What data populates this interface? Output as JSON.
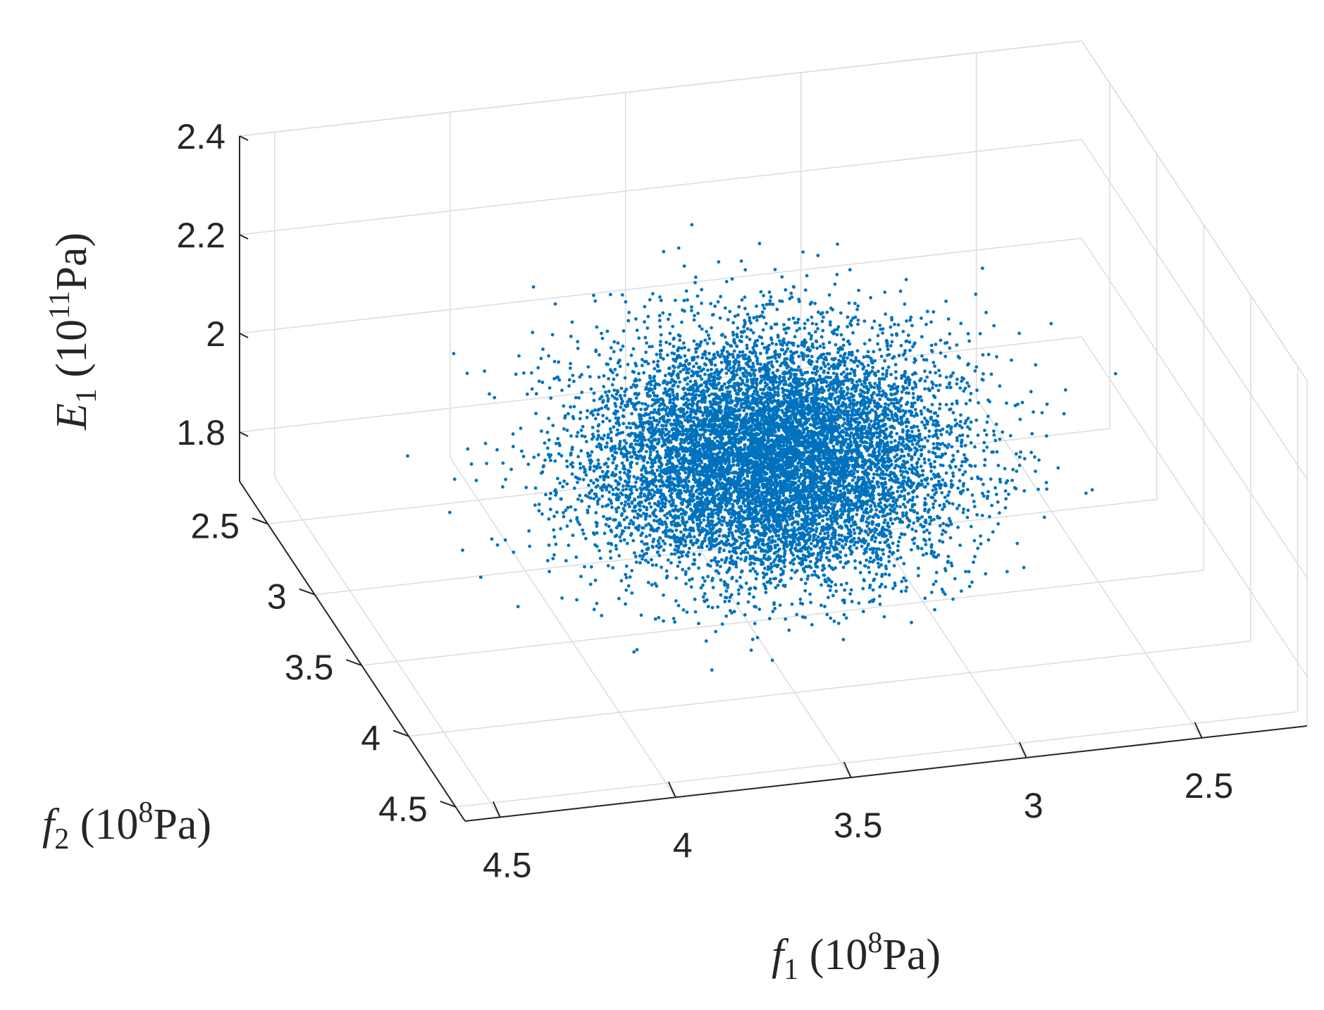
{
  "chart_data": {
    "type": "scatter",
    "projection": "3d",
    "title": "",
    "color": "#0072bd",
    "x_axis": {
      "label_var": "f",
      "label_sub": "1",
      "label_unit_open": " (10",
      "label_exp": "8",
      "label_unit_close": "Pa)",
      "range": [
        2.2,
        4.6
      ],
      "reversed": true,
      "ticks": [
        {
          "value": 4.5,
          "label": "4.5"
        },
        {
          "value": 4.0,
          "label": "4"
        },
        {
          "value": 3.5,
          "label": "3.5"
        },
        {
          "value": 3.0,
          "label": "3"
        },
        {
          "value": 2.5,
          "label": "2.5"
        }
      ]
    },
    "y_axis": {
      "label_var": "f",
      "label_sub": "2",
      "label_unit_open": " (10",
      "label_exp": "8",
      "label_unit_close": "Pa)",
      "range": [
        2.2,
        4.6
      ],
      "ticks": [
        {
          "value": 2.5,
          "label": "2.5"
        },
        {
          "value": 3.0,
          "label": "3"
        },
        {
          "value": 3.5,
          "label": "3.5"
        },
        {
          "value": 4.0,
          "label": "4"
        },
        {
          "value": 4.5,
          "label": "4.5"
        }
      ]
    },
    "z_axis": {
      "label_var": "E",
      "label_sub": "1",
      "label_unit_open": " (10",
      "label_exp": "11",
      "label_unit_close": "Pa)",
      "range": [
        1.7,
        2.4
      ],
      "ticks": [
        {
          "value": 1.8,
          "label": "1.8"
        },
        {
          "value": 2.0,
          "label": "2"
        },
        {
          "value": 2.2,
          "label": "2.2"
        },
        {
          "value": 2.4,
          "label": "2.4"
        }
      ]
    },
    "grid": true,
    "distribution": {
      "kind": "normal",
      "count": 10000,
      "x_mean": 3.4,
      "x_sd": 0.25,
      "y_mean": 3.4,
      "y_sd": 0.25,
      "z_mean": 2.0,
      "z_sd": 0.1
    }
  }
}
